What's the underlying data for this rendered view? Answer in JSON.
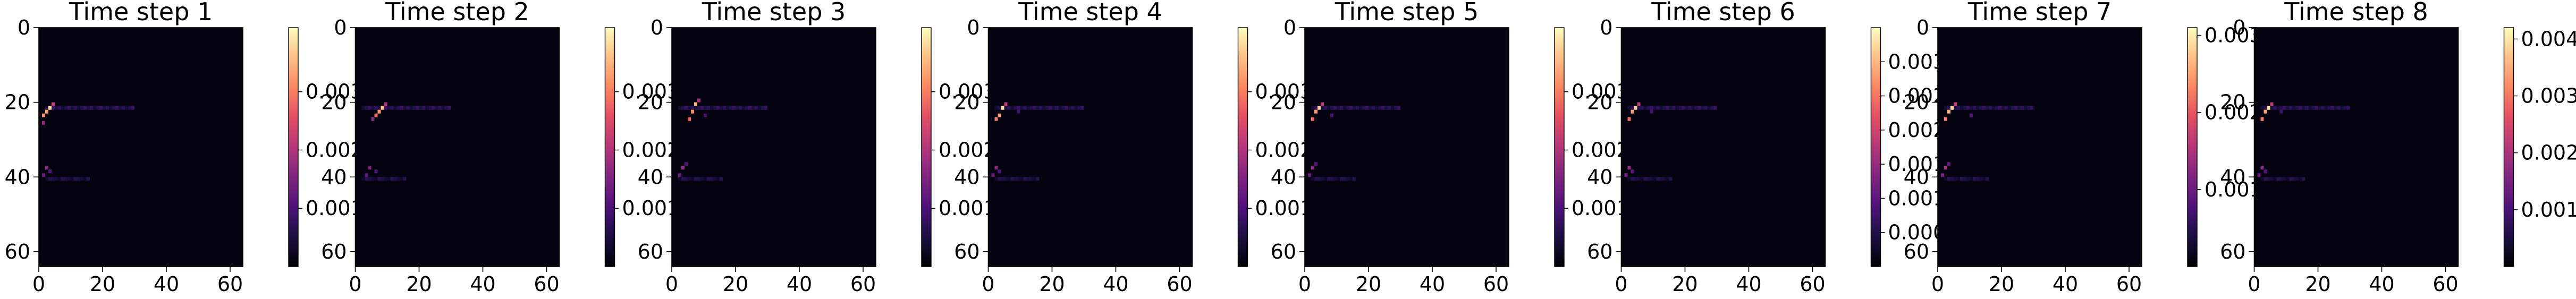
{
  "chart_data": [
    {
      "type": "heatmap",
      "title": "Time step 1",
      "x_ticks": [
        0,
        20,
        40,
        60
      ],
      "y_ticks": [
        0,
        20,
        40,
        60
      ],
      "xlim": [
        0,
        64
      ],
      "ylim": [
        64,
        0
      ],
      "colorbar": {
        "ticks": [
          0.001,
          0.002,
          0.003
        ],
        "tick_labels": [
          "0.001",
          "0.002",
          "0.003"
        ],
        "range": [
          0,
          0.0041
        ]
      },
      "hotspots": [
        {
          "x": 3,
          "y": 21,
          "value": 0.0038
        },
        {
          "x": 2,
          "y": 22,
          "value": 0.0033
        },
        {
          "x": 1,
          "y": 23,
          "value": 0.003
        },
        {
          "x": 4,
          "y": 20,
          "value": 0.0022
        },
        {
          "x": 1,
          "y": 25,
          "value": 0.0018
        },
        {
          "x": 2,
          "y": 37,
          "value": 0.0016
        },
        {
          "x": 1,
          "y": 39,
          "value": 0.0013
        },
        {
          "x": 3,
          "y": 38,
          "value": 0.0011
        }
      ]
    },
    {
      "type": "heatmap",
      "title": "Time step 2",
      "x_ticks": [
        0,
        20,
        40,
        60
      ],
      "y_ticks": [
        0,
        20,
        40,
        60
      ],
      "xlim": [
        0,
        64
      ],
      "ylim": [
        64,
        0
      ],
      "colorbar": {
        "ticks": [
          0.001,
          0.002,
          0.003
        ],
        "tick_labels": [
          "0.001",
          "0.002",
          "0.003"
        ],
        "range": [
          0,
          0.0041
        ]
      },
      "hotspots": [
        {
          "x": 8,
          "y": 21,
          "value": 0.0036
        },
        {
          "x": 7,
          "y": 22,
          "value": 0.0032
        },
        {
          "x": 6,
          "y": 23,
          "value": 0.0028
        },
        {
          "x": 9,
          "y": 20,
          "value": 0.002
        },
        {
          "x": 5,
          "y": 24,
          "value": 0.0016
        },
        {
          "x": 4,
          "y": 37,
          "value": 0.0015
        },
        {
          "x": 3,
          "y": 39,
          "value": 0.0012
        },
        {
          "x": 6,
          "y": 38,
          "value": 0.001
        }
      ]
    },
    {
      "type": "heatmap",
      "title": "Time step 3",
      "x_ticks": [
        0,
        20,
        40,
        60
      ],
      "y_ticks": [
        0,
        20,
        40,
        60
      ],
      "xlim": [
        0,
        64
      ],
      "ylim": [
        64,
        0
      ],
      "colorbar": {
        "ticks": [
          0.001,
          0.002,
          0.003
        ],
        "tick_labels": [
          "0.001",
          "0.002",
          "0.003"
        ],
        "range": [
          0,
          0.0041
        ]
      },
      "hotspots": [
        {
          "x": 7,
          "y": 20,
          "value": 0.0035
        },
        {
          "x": 6,
          "y": 22,
          "value": 0.0031
        },
        {
          "x": 5,
          "y": 24,
          "value": 0.0027
        },
        {
          "x": 8,
          "y": 19,
          "value": 0.0019
        },
        {
          "x": 3,
          "y": 37,
          "value": 0.0017
        },
        {
          "x": 2,
          "y": 39,
          "value": 0.0013
        },
        {
          "x": 4,
          "y": 36,
          "value": 0.0011
        },
        {
          "x": 10,
          "y": 23,
          "value": 0.0009
        }
      ]
    },
    {
      "type": "heatmap",
      "title": "Time step 4",
      "x_ticks": [
        0,
        20,
        40,
        60
      ],
      "y_ticks": [
        0,
        20,
        40,
        60
      ],
      "xlim": [
        0,
        64
      ],
      "ylim": [
        64,
        0
      ],
      "colorbar": {
        "ticks": [
          0.001,
          0.002,
          0.003
        ],
        "tick_labels": [
          "0.001",
          "0.002",
          "0.003"
        ],
        "range": [
          0,
          0.0041
        ]
      },
      "hotspots": [
        {
          "x": 4,
          "y": 21,
          "value": 0.0038
        },
        {
          "x": 3,
          "y": 23,
          "value": 0.0033
        },
        {
          "x": 2,
          "y": 24,
          "value": 0.0029
        },
        {
          "x": 5,
          "y": 20,
          "value": 0.0021
        },
        {
          "x": 2,
          "y": 37,
          "value": 0.0016
        },
        {
          "x": 1,
          "y": 39,
          "value": 0.0013
        },
        {
          "x": 3,
          "y": 38,
          "value": 0.0011
        },
        {
          "x": 9,
          "y": 22,
          "value": 0.0009
        }
      ]
    },
    {
      "type": "heatmap",
      "title": "Time step 5",
      "x_ticks": [
        0,
        20,
        40,
        60
      ],
      "y_ticks": [
        0,
        20,
        40,
        60
      ],
      "xlim": [
        0,
        64
      ],
      "ylim": [
        64,
        0
      ],
      "colorbar": {
        "ticks": [
          0.001,
          0.002,
          0.003
        ],
        "tick_labels": [
          "0.001",
          "0.002",
          "0.003"
        ],
        "range": [
          0,
          0.0041
        ]
      },
      "hotspots": [
        {
          "x": 4,
          "y": 21,
          "value": 0.0037
        },
        {
          "x": 3,
          "y": 22,
          "value": 0.0032
        },
        {
          "x": 2,
          "y": 24,
          "value": 0.0028
        },
        {
          "x": 5,
          "y": 20,
          "value": 0.0021
        },
        {
          "x": 2,
          "y": 37,
          "value": 0.0017
        },
        {
          "x": 1,
          "y": 39,
          "value": 0.0013
        },
        {
          "x": 3,
          "y": 36,
          "value": 0.0011
        },
        {
          "x": 8,
          "y": 23,
          "value": 0.0009
        }
      ]
    },
    {
      "type": "heatmap",
      "title": "Time step 6",
      "x_ticks": [
        0,
        20,
        40,
        60
      ],
      "y_ticks": [
        0,
        20,
        40,
        60
      ],
      "xlim": [
        0,
        64
      ],
      "ylim": [
        64,
        0
      ],
      "colorbar": {
        "ticks": [
          0.0005,
          0.001,
          0.0015,
          0.002,
          0.0025,
          0.003
        ],
        "tick_labels": [
          "0.000",
          "0.001",
          "0.001",
          "0.002",
          "0.002",
          "0.003"
        ],
        "range": [
          0,
          0.0035
        ]
      },
      "hotspots": [
        {
          "x": 4,
          "y": 21,
          "value": 0.0032
        },
        {
          "x": 3,
          "y": 22,
          "value": 0.0028
        },
        {
          "x": 2,
          "y": 24,
          "value": 0.0024
        },
        {
          "x": 5,
          "y": 20,
          "value": 0.0018
        },
        {
          "x": 2,
          "y": 37,
          "value": 0.0015
        },
        {
          "x": 1,
          "y": 39,
          "value": 0.0012
        },
        {
          "x": 3,
          "y": 38,
          "value": 0.001
        },
        {
          "x": 9,
          "y": 22,
          "value": 0.0008
        }
      ]
    },
    {
      "type": "heatmap",
      "title": "Time step 7",
      "x_ticks": [
        0,
        20,
        40,
        60
      ],
      "y_ticks": [
        0,
        20,
        40,
        60
      ],
      "xlim": [
        0,
        64
      ],
      "ylim": [
        64,
        0
      ],
      "colorbar": {
        "ticks": [
          0.001,
          0.002,
          0.003
        ],
        "tick_labels": [
          "0.001",
          "0.002",
          "0.003"
        ],
        "range": [
          0,
          0.0031
        ]
      },
      "hotspots": [
        {
          "x": 4,
          "y": 21,
          "value": 0.0029
        },
        {
          "x": 3,
          "y": 22,
          "value": 0.0026
        },
        {
          "x": 2,
          "y": 24,
          "value": 0.0022
        },
        {
          "x": 5,
          "y": 20,
          "value": 0.0017
        },
        {
          "x": 2,
          "y": 37,
          "value": 0.0014
        },
        {
          "x": 1,
          "y": 39,
          "value": 0.0011
        },
        {
          "x": 3,
          "y": 36,
          "value": 0.0009
        },
        {
          "x": 10,
          "y": 23,
          "value": 0.0008
        }
      ]
    },
    {
      "type": "heatmap",
      "title": "Time step 8",
      "x_ticks": [
        0,
        20,
        40,
        60
      ],
      "y_ticks": [
        0,
        20,
        40,
        60
      ],
      "xlim": [
        0,
        64
      ],
      "ylim": [
        64,
        0
      ],
      "colorbar": {
        "ticks": [
          0.001,
          0.002,
          0.003,
          0.004
        ],
        "tick_labels": [
          "0.001",
          "0.002",
          "0.003",
          "0.004"
        ],
        "range": [
          0,
          0.0042
        ]
      },
      "hotspots": [
        {
          "x": 4,
          "y": 21,
          "value": 0.0039
        },
        {
          "x": 3,
          "y": 22,
          "value": 0.0034
        },
        {
          "x": 2,
          "y": 24,
          "value": 0.003
        },
        {
          "x": 5,
          "y": 20,
          "value": 0.0022
        },
        {
          "x": 2,
          "y": 37,
          "value": 0.0017
        },
        {
          "x": 1,
          "y": 39,
          "value": 0.0013
        },
        {
          "x": 3,
          "y": 38,
          "value": 0.0011
        },
        {
          "x": 8,
          "y": 22,
          "value": 0.0009
        }
      ]
    }
  ]
}
